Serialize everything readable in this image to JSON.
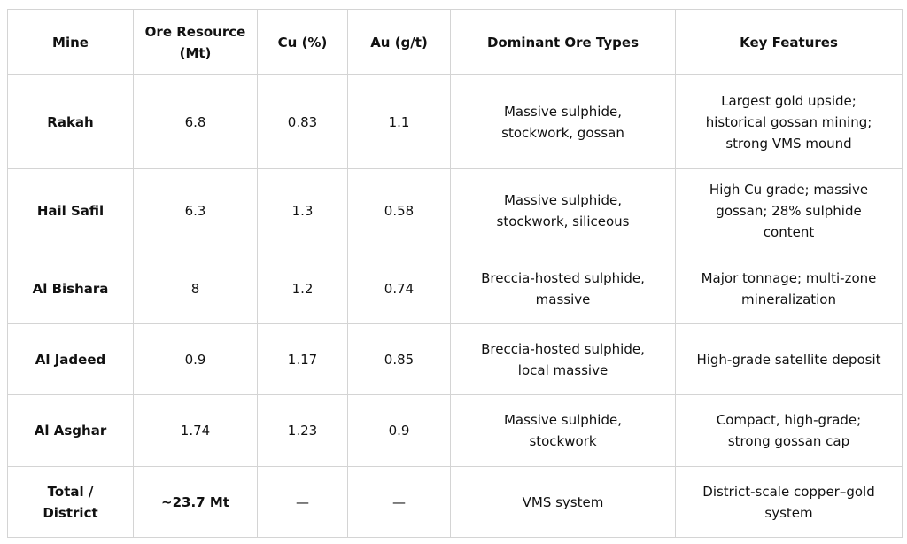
{
  "table": {
    "header": [
      [
        "Mine"
      ],
      [
        "Ore Resource",
        "(Mt)"
      ],
      [
        "Cu (%)"
      ],
      [
        "Au (g/t)"
      ],
      [
        "Dominant Ore Types"
      ],
      [
        "Key Features"
      ]
    ],
    "rows": [
      [
        [
          "Rakah"
        ],
        [
          "6.8"
        ],
        [
          "0.83"
        ],
        [
          "1.1"
        ],
        [
          "Massive sulphide,",
          "stockwork, gossan"
        ],
        [
          "Largest gold upside;",
          "historical gossan mining;",
          "strong VMS mound"
        ]
      ],
      [
        [
          "Hail Safil"
        ],
        [
          "6.3"
        ],
        [
          "1.3"
        ],
        [
          "0.58"
        ],
        [
          "Massive sulphide,",
          "stockwork, siliceous"
        ],
        [
          "High Cu grade; massive",
          "gossan; 28% sulphide",
          "content"
        ]
      ],
      [
        [
          "Al Bishara"
        ],
        [
          "8"
        ],
        [
          "1.2"
        ],
        [
          "0.74"
        ],
        [
          "Breccia-hosted sulphide,",
          "massive"
        ],
        [
          "Major tonnage; multi-zone",
          "mineralization"
        ]
      ],
      [
        [
          "Al Jadeed"
        ],
        [
          "0.9"
        ],
        [
          "1.17"
        ],
        [
          "0.85"
        ],
        [
          "Breccia-hosted sulphide,",
          "local massive"
        ],
        [
          "High-grade satellite deposit"
        ]
      ],
      [
        [
          "Al Asghar"
        ],
        [
          "1.74"
        ],
        [
          "1.23"
        ],
        [
          "0.9"
        ],
        [
          "Massive sulphide,",
          "stockwork"
        ],
        [
          "Compact, high-grade;",
          "strong gossan cap"
        ]
      ],
      [
        [
          "Total /",
          "District"
        ],
        [
          "~23.7 Mt"
        ],
        [
          "—"
        ],
        [
          "—"
        ],
        [
          "VMS system"
        ],
        [
          "District-scale copper–gold",
          "system"
        ]
      ]
    ]
  }
}
